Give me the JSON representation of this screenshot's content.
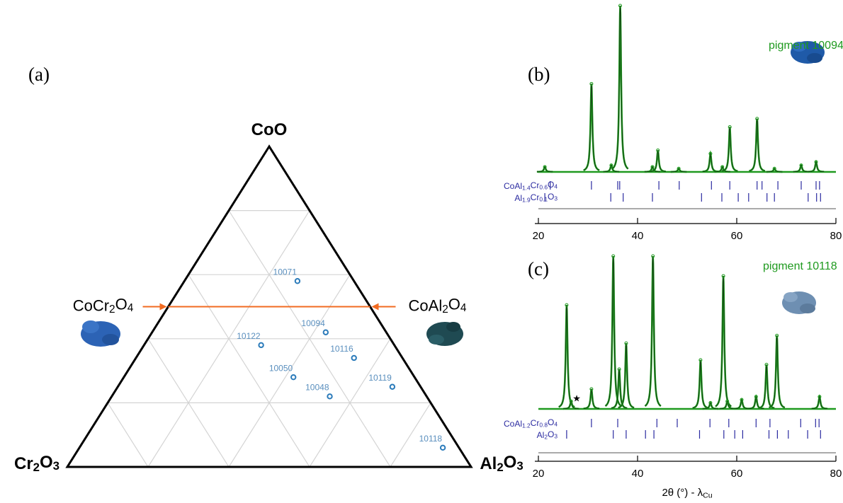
{
  "chart_data": [
    {
      "type": "ternary",
      "panel_label": "(a)",
      "categories": [
        "10071",
        "10094",
        "10122",
        "10116",
        "10050",
        "10119",
        "10048",
        "10118"
      ],
      "series": [
        {
          "name": "CoO",
          "values": [
            0.58,
            0.42,
            0.38,
            0.34,
            0.28,
            0.25,
            0.22,
            0.06
          ]
        },
        {
          "name": "Cr2O3",
          "values": [
            0.14,
            0.15,
            0.33,
            0.12,
            0.3,
            0.07,
            0.24,
            0.04
          ]
        },
        {
          "name": "Al2O3",
          "values": [
            0.28,
            0.43,
            0.29,
            0.54,
            0.42,
            0.68,
            0.54,
            0.9
          ]
        }
      ],
      "color": "#2b7bba",
      "label_color": "#5a8fbe",
      "gridlines": [
        0.2,
        0.4,
        0.6,
        0.8
      ],
      "grid": true,
      "reference_line": {
        "CoO": 0.5,
        "labels": [
          "CoCr2O4",
          "CoAl2O4"
        ],
        "color": "#f26b21"
      }
    },
    {
      "type": "xrd",
      "panel_label": "(b)",
      "title": "pigment 10094",
      "xlim": [
        20,
        80
      ],
      "xticks": [
        20,
        40,
        60,
        80
      ],
      "color": "#1f9a1f",
      "peaks": {
        "x": [
          21.3,
          30.7,
          34.7,
          36.5,
          43.0,
          44.1,
          48.3,
          54.7,
          57.1,
          58.6,
          64.1,
          67.6,
          73.0,
          76.0
        ],
        "values": [
          3,
          53,
          4,
          100,
          3,
          13,
          2,
          11,
          3,
          27,
          32,
          2,
          4,
          6
        ]
      },
      "phases": [
        {
          "name": "CoAl1.4Cr0.6O4",
          "color": "#2a2aa0",
          "positions": [
            22.4,
            30.7,
            36.0,
            36.4,
            44.3,
            48.4,
            54.9,
            58.6,
            64.1,
            65.1,
            68.3,
            73.0,
            76.0,
            76.7
          ]
        },
        {
          "name": "Al1.9Cr0.1O3",
          "color": "#2a2aa0",
          "positions": [
            21.3,
            34.6,
            37.1,
            43.0,
            52.9,
            57.0,
            60.3,
            62.4,
            66.1,
            67.6,
            74.4,
            76.1,
            76.9
          ]
        }
      ]
    },
    {
      "type": "xrd",
      "panel_label": "(c)",
      "title": "pigment 10118",
      "xlim": [
        20,
        80
      ],
      "xticks": [
        20,
        40,
        60,
        80
      ],
      "color": "#1f9a1f",
      "xlabel": {
        "text": "2θ (°) - λ",
        "sub": "Cu"
      },
      "marker": {
        "x": 26.6,
        "label": "★"
      },
      "peaks": {
        "x": [
          25.7,
          26.6,
          30.7,
          35.1,
          36.3,
          37.7,
          43.1,
          52.7,
          54.7,
          57.3,
          58.1,
          61.0,
          63.9,
          66.0,
          68.1,
          76.7
        ],
        "values": [
          68,
          5,
          13,
          100,
          26,
          43,
          100,
          32,
          4,
          87,
          5,
          6,
          8,
          29,
          48,
          8
        ]
      },
      "phases": [
        {
          "name": "CoAl1.2Cr0.8O4",
          "color": "#2a2aa0",
          "positions": [
            30.7,
            36.0,
            43.9,
            48.0,
            54.6,
            58.4,
            63.9,
            66.7,
            72.9,
            75.9,
            76.6
          ]
        },
        {
          "name": "Al2O3",
          "color": "#2a2aa0",
          "positions": [
            25.7,
            35.1,
            37.7,
            41.6,
            43.3,
            52.5,
            57.4,
            59.6,
            61.2,
            66.5,
            68.2,
            70.4,
            74.3,
            76.9
          ]
        }
      ]
    }
  ]
}
